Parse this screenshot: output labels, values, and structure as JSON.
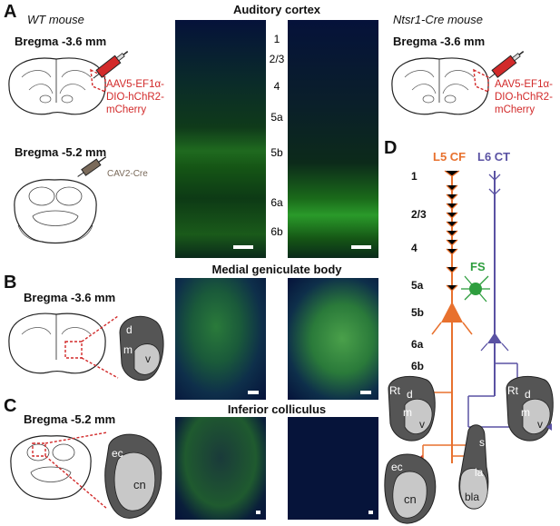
{
  "panels": {
    "A": "A",
    "B": "B",
    "C": "C",
    "D": "D"
  },
  "a_panel": {
    "wt_mouse": "WT mouse",
    "ntsr1_mouse": "Ntsr1-Cre mouse",
    "bregma_left_top": "Bregma -3.6 mm",
    "bregma_left_bottom": "Bregma -5.2 mm",
    "bregma_right": "Bregma -3.6 mm",
    "virus_left": [
      "AAV5-EF1α-",
      "DIO-hChR2-",
      "mCherry"
    ],
    "virus_right": [
      "AAV5-EF1α-",
      "DIO-hChR2-",
      "mCherry"
    ],
    "cav_label": "CAV2-Cre",
    "title": "Auditory cortex",
    "layers": [
      "1",
      "2/3",
      "4",
      "5a",
      "5b",
      "6a",
      "6b"
    ]
  },
  "b_panel": {
    "bregma": "Bregma -3.6 mm",
    "title": "Medial geniculate body",
    "labels": {
      "d": "d",
      "m": "m",
      "v": "v"
    }
  },
  "c_panel": {
    "bregma": "Bregma -5.2 mm",
    "title": "Inferior colliculus",
    "labels": {
      "ec": "ec",
      "cn": "cn"
    }
  },
  "d_panel": {
    "l5_label": "L5 CF",
    "l6_label": "L6 CT",
    "fs_label": "FS",
    "layers": [
      "1",
      "2/3",
      "4",
      "5a",
      "5b",
      "6a",
      "6b"
    ],
    "rt_left": "Rt",
    "rt_right": "Rt",
    "mgb_left": {
      "d": "d",
      "m": "m",
      "v": "v"
    },
    "mgb_right": {
      "d": "d",
      "m": "m",
      "v": "v"
    },
    "ic": {
      "ec": "ec",
      "cn": "cn"
    },
    "amyg": {
      "s": "s",
      "la": "la",
      "bla": "bla"
    }
  },
  "colors": {
    "l5": "#e8712e",
    "l6": "#5a52a3",
    "fs": "#2e9e3e",
    "virus": "#d22a2a"
  }
}
